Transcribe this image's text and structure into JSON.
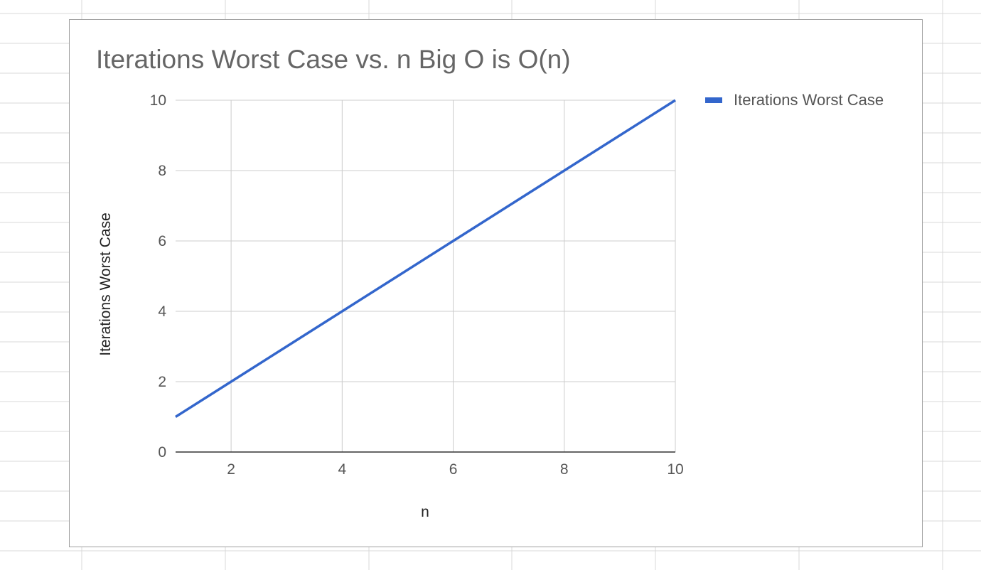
{
  "sheet": {
    "gridline_color": "#d9d9d9"
  },
  "chart_data": {
    "type": "line",
    "title": "Iterations Worst Case vs. n Big O is O(n)",
    "xlabel": "n",
    "ylabel": "Iterations Worst Case",
    "x": [
      1,
      2,
      3,
      4,
      5,
      6,
      7,
      8,
      9,
      10
    ],
    "series": [
      {
        "name": "Iterations Worst Case",
        "values": [
          1,
          2,
          3,
          4,
          5,
          6,
          7,
          8,
          9,
          10
        ],
        "color": "#3366cc"
      }
    ],
    "xlim": [
      1,
      10
    ],
    "ylim": [
      0,
      10
    ],
    "xticks": [
      2,
      4,
      6,
      8,
      10
    ],
    "yticks": [
      0,
      2,
      4,
      6,
      8,
      10
    ],
    "grid": true,
    "legend": "right"
  }
}
